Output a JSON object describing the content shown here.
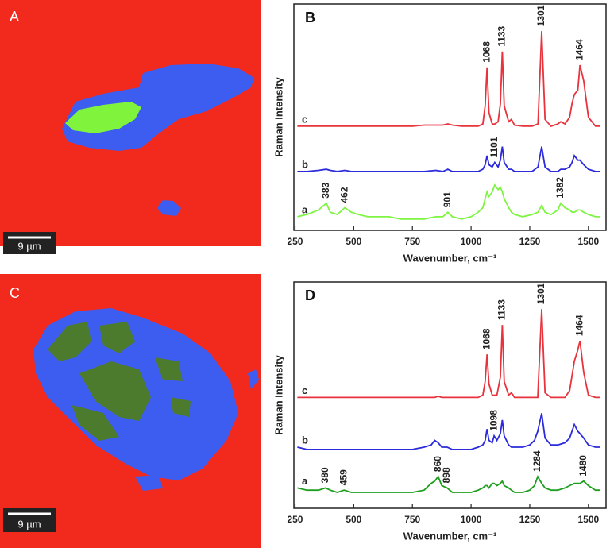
{
  "images": [
    {
      "label": "A",
      "scale_bar": "9 µm"
    },
    {
      "label": "C",
      "scale_bar": "9 µm"
    }
  ],
  "chart_data": [
    {
      "type": "line",
      "title": "B",
      "xlabel": "Wavenumber, cm⁻¹",
      "ylabel": "Raman Intensity",
      "xlim": [
        245,
        1575
      ],
      "xticks": [
        250,
        500,
        750,
        1000,
        1250,
        1500
      ],
      "ylim": [
        0,
        100
      ],
      "x": [
        260,
        300,
        350,
        383,
        400,
        430,
        462,
        490,
        520,
        560,
        600,
        650,
        700,
        750,
        800,
        850,
        880,
        901,
        920,
        960,
        1000,
        1030,
        1050,
        1060,
        1068,
        1076,
        1090,
        1101,
        1115,
        1125,
        1133,
        1141,
        1160,
        1172,
        1185,
        1220,
        1260,
        1285,
        1301,
        1315,
        1340,
        1370,
        1382,
        1400,
        1420,
        1430,
        1440,
        1455,
        1464,
        1480,
        1500,
        1530,
        1550
      ],
      "series": [
        {
          "name": "a",
          "color": "#7ef542",
          "values": [
            6,
            7,
            9,
            12,
            8,
            7,
            10,
            8,
            7,
            6,
            6,
            6,
            5,
            5,
            5,
            6,
            6,
            8,
            6,
            5,
            6,
            8,
            10,
            14,
            17,
            15,
            17,
            20,
            18,
            19,
            17,
            14,
            10,
            8,
            7,
            6,
            7,
            8,
            11,
            8,
            7,
            9,
            12,
            10,
            9,
            8,
            8,
            9,
            9,
            8,
            7,
            6,
            6
          ]
        },
        {
          "name": "b",
          "color": "#2b2bdc",
          "values": [
            26,
            26,
            26.5,
            27,
            26.5,
            26,
            26.5,
            26,
            26,
            26,
            26,
            26,
            26,
            26,
            26,
            26.5,
            26,
            27,
            26,
            26,
            26,
            26,
            27,
            29,
            33,
            29,
            28,
            30,
            28,
            31,
            37,
            30,
            27,
            27,
            26,
            26,
            26,
            28,
            37,
            28,
            26,
            26,
            27,
            27,
            28,
            30,
            33,
            31,
            31,
            29,
            27,
            26,
            26
          ]
        },
        {
          "name": "c",
          "color": "#e8323c",
          "values": [
            46,
            46,
            46,
            46,
            46,
            46,
            46,
            46,
            46,
            46,
            46,
            46,
            46,
            46,
            46.5,
            46.5,
            46.5,
            47,
            46.5,
            46,
            46,
            46,
            47,
            55,
            72,
            52,
            47,
            47,
            48,
            56,
            79,
            55,
            48,
            49,
            46.5,
            46,
            46,
            47,
            88,
            49,
            46,
            47,
            48,
            47,
            50,
            56,
            60,
            62,
            73,
            66,
            50,
            46,
            46
          ]
        }
      ],
      "annotations": [
        {
          "x": 383,
          "series": 0
        },
        {
          "x": 462,
          "series": 0
        },
        {
          "x": 901,
          "series": 0
        },
        {
          "x": 1382,
          "series": 0
        },
        {
          "x": 1101,
          "series": 1
        },
        {
          "x": 1068,
          "series": 2
        },
        {
          "x": 1133,
          "series": 2
        },
        {
          "x": 1301,
          "series": 2
        },
        {
          "x": 1464,
          "series": 2
        }
      ]
    },
    {
      "type": "line",
      "title": "D",
      "xlabel": "Wavenumber, cm⁻¹",
      "ylabel": "Raman Intensity",
      "xlim": [
        245,
        1575
      ],
      "xticks": [
        250,
        500,
        750,
        1000,
        1250,
        1500
      ],
      "ylim": [
        0,
        100
      ],
      "x": [
        260,
        300,
        350,
        380,
        400,
        430,
        459,
        490,
        520,
        560,
        600,
        650,
        700,
        750,
        800,
        830,
        845,
        860,
        875,
        898,
        920,
        960,
        1000,
        1030,
        1050,
        1060,
        1068,
        1076,
        1090,
        1098,
        1110,
        1125,
        1133,
        1141,
        1160,
        1172,
        1185,
        1220,
        1250,
        1270,
        1284,
        1301,
        1315,
        1340,
        1370,
        1400,
        1420,
        1440,
        1455,
        1464,
        1480,
        1500,
        1530,
        1550
      ],
      "series": [
        {
          "name": "a",
          "color": "#1e9e1e",
          "values": [
            9,
            8,
            8,
            9,
            8,
            7,
            8,
            7,
            7,
            7,
            7,
            7,
            7,
            7,
            8,
            11,
            12,
            14,
            10,
            9,
            7,
            7,
            7,
            8,
            9,
            10,
            10,
            9,
            11,
            11,
            10,
            11,
            12,
            10,
            9,
            8,
            7,
            7,
            8,
            10,
            14,
            11,
            9,
            8,
            8,
            9,
            10,
            11,
            11,
            11,
            12,
            10,
            8,
            8
          ]
        },
        {
          "name": "b",
          "color": "#2b2bdc",
          "values": [
            27,
            26,
            26,
            26,
            26,
            26,
            26,
            26,
            26,
            26,
            26,
            26,
            26,
            26,
            27,
            28,
            30,
            29,
            27,
            27,
            26,
            26,
            26,
            27,
            28,
            30,
            35,
            30,
            29,
            32,
            30,
            33,
            39,
            32,
            28,
            27,
            27,
            27,
            28,
            30,
            34,
            42,
            31,
            28,
            28,
            29,
            31,
            37,
            34,
            33,
            31,
            28,
            27,
            27
          ]
        },
        {
          "name": "c",
          "color": "#e8323c",
          "values": [
            49,
            49,
            49,
            49,
            49,
            49,
            49,
            49,
            49,
            49,
            49,
            49,
            49,
            49,
            49,
            49,
            49,
            49.5,
            49,
            49,
            49,
            49,
            49,
            49,
            50,
            56,
            68,
            55,
            50,
            50,
            50,
            58,
            81,
            56,
            50,
            51,
            49,
            49,
            49,
            49,
            49,
            88,
            51,
            49,
            49,
            49,
            52,
            65,
            70,
            74,
            60,
            50,
            49,
            49
          ]
        }
      ],
      "annotations": [
        {
          "x": 380,
          "series": 0
        },
        {
          "x": 459,
          "series": 0
        },
        {
          "x": 860,
          "series": 0
        },
        {
          "x": 898,
          "series": 0
        },
        {
          "x": 1284,
          "series": 0
        },
        {
          "x": 1480,
          "series": 0
        },
        {
          "x": 1098,
          "series": 1
        },
        {
          "x": 1068,
          "series": 2
        },
        {
          "x": 1133,
          "series": 2
        },
        {
          "x": 1301,
          "series": 2
        },
        {
          "x": 1464,
          "series": 2
        }
      ]
    }
  ]
}
